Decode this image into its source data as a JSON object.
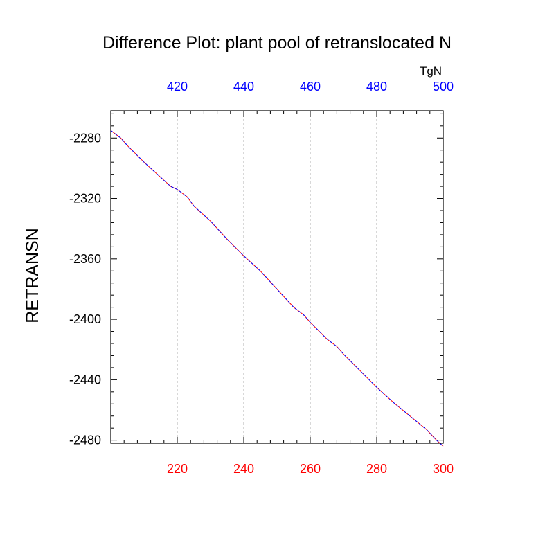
{
  "chart_data": {
    "type": "line",
    "title": "Difference Plot: plant pool of retranslocated N",
    "ylabel": "RETRANSN",
    "top_axis_unit": "TgN",
    "xlim": [
      200,
      300
    ],
    "ylim": [
      -2482,
      -2262
    ],
    "x_ticks": [
      220,
      240,
      260,
      280,
      300
    ],
    "x_tick_labels": [
      "220",
      "240",
      "260",
      "280",
      "300"
    ],
    "top_ticks": [
      420,
      440,
      460,
      480,
      500
    ],
    "top_tick_labels": [
      "420",
      "440",
      "460",
      "480",
      "500"
    ],
    "y_ticks": [
      -2480,
      -2440,
      -2400,
      -2360,
      -2320,
      -2280
    ],
    "y_tick_labels": [
      "-2480",
      "-2440",
      "-2400",
      "-2360",
      "-2320",
      "-2280"
    ],
    "grid": "vertical dotted",
    "series": [
      {
        "color": "#ff0000",
        "x": [
          200,
          203,
          205,
          210,
          215,
          218,
          220,
          223,
          225,
          230,
          235,
          240,
          245,
          250,
          255,
          258,
          260,
          265,
          268,
          270,
          275,
          280,
          285,
          290,
          295,
          298,
          300
        ],
        "values": [
          -2275,
          -2280,
          -2285,
          -2296,
          -2306,
          -2312,
          -2314,
          -2319,
          -2325,
          -2335,
          -2347,
          -2358,
          -2368,
          -2380,
          -2392,
          -2397,
          -2402,
          -2413,
          -2418,
          -2423,
          -2434,
          -2445,
          -2455,
          -2464,
          -2473,
          -2480,
          -2484
        ]
      },
      {
        "color": "#0000ff",
        "x": [
          200,
          203,
          205,
          210,
          215,
          218,
          220,
          223,
          225,
          230,
          235,
          240,
          245,
          250,
          255,
          258,
          260,
          265,
          268,
          270,
          275,
          280,
          285,
          290,
          295,
          298,
          300
        ],
        "values": [
          -2275,
          -2280,
          -2285,
          -2296,
          -2306,
          -2312,
          -2314,
          -2319,
          -2325,
          -2335,
          -2347,
          -2358,
          -2368,
          -2380,
          -2392,
          -2397,
          -2402,
          -2413,
          -2418,
          -2423,
          -2434,
          -2445,
          -2455,
          -2464,
          -2473,
          -2480,
          -2484
        ]
      }
    ],
    "colors": {
      "bottom_axis_labels": "#ff0000",
      "top_axis_labels": "#0000ff",
      "frame": "#000000",
      "grid": "#b0b0b0"
    }
  }
}
